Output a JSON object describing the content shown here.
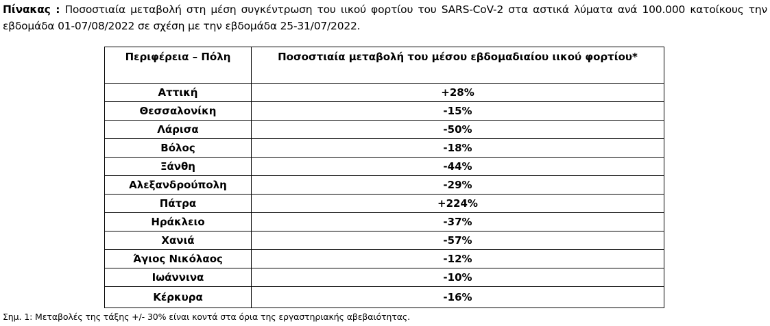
{
  "caption": {
    "label": "Πίνακας :",
    "text": "Ποσοστιαία μεταβολή στη μέση συγκέντρωση του ιικού φορτίου του SARS-CoV-2 στα αστικά λύματα ανά 100.000 κατοίκους την εβδομάδα 01-07/08/2022 σε σχέση με την εβδομάδα 25-31/07/2022."
  },
  "table": {
    "header": [
      "Περιφέρεια – Πόλη",
      "Ποσοστιαία μεταβολή του μέσου εβδομαδιαίου ιικού φορτίου*"
    ],
    "rows": [
      [
        "Αττική",
        "+28%"
      ],
      [
        "Θεσσαλονίκη",
        "-15%"
      ],
      [
        "Λάρισα",
        "-50%"
      ],
      [
        "Βόλος",
        "-18%"
      ],
      [
        "Ξάνθη",
        "-44%"
      ],
      [
        "Αλεξανδρούπολη",
        "-29%"
      ],
      [
        "Πάτρα",
        "+224%"
      ],
      [
        "Ηράκλειο",
        "-37%"
      ],
      [
        "Χανιά",
        "-57%"
      ],
      [
        "Άγιος Νικόλαος",
        "-12%"
      ],
      [
        "Ιωάννινα",
        "-10%"
      ],
      [
        "Κέρκυρα",
        "-16%"
      ]
    ]
  },
  "footnote": "Σημ. 1: Μεταβολές της τάξης +/- 30% είναι κοντά στα όρια της εργαστηριακής αβεβαιότητας."
}
